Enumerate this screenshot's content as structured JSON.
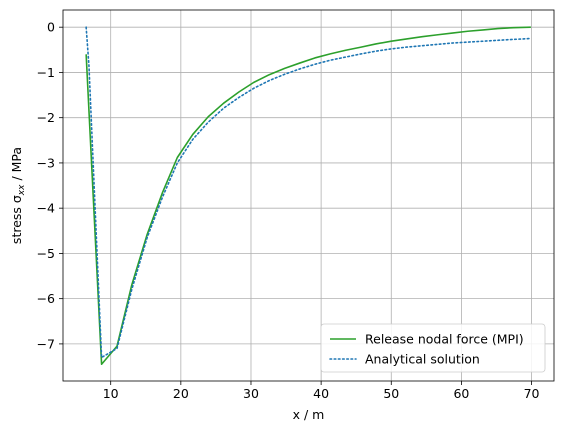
{
  "chart_data": {
    "type": "line",
    "xlabel": "x / m",
    "ylabel_prefix": "stress σ",
    "ylabel_subscript": "xx",
    "ylabel_suffix": " / MPa",
    "xlim": [
      3.2,
      73.2
    ],
    "ylim": [
      -7.82,
      0.38
    ],
    "xticks": [
      10,
      20,
      30,
      40,
      50,
      60,
      70
    ],
    "yticks": [
      0,
      -1,
      -2,
      -3,
      -4,
      -5,
      -6,
      -7
    ],
    "grid": true,
    "legend_position": "lower-right",
    "series": [
      {
        "name": "Release nodal force (MPI)",
        "color": "#2ca02c",
        "style": "solid",
        "x": [
          6.5,
          8.7,
          10.9,
          13.0,
          15.2,
          17.4,
          19.5,
          21.7,
          23.9,
          26.1,
          28.3,
          30.4,
          32.6,
          34.8,
          37.0,
          39.1,
          41.3,
          43.5,
          45.7,
          47.8,
          50.0,
          52.2,
          54.4,
          56.5,
          58.7,
          60.9,
          63.1,
          65.2,
          67.4,
          69.9
        ],
        "y": [
          -0.6,
          -7.45,
          -7.05,
          -5.7,
          -4.58,
          -3.65,
          -2.88,
          -2.37,
          -1.98,
          -1.68,
          -1.43,
          -1.22,
          -1.05,
          -0.91,
          -0.79,
          -0.68,
          -0.59,
          -0.51,
          -0.44,
          -0.37,
          -0.31,
          -0.26,
          -0.21,
          -0.17,
          -0.13,
          -0.09,
          -0.06,
          -0.03,
          -0.01,
          0.0
        ]
      },
      {
        "name": "Analytical solution",
        "color": "#1f77b4",
        "style": "dotted",
        "x": [
          6.5,
          6.9,
          8.7,
          10.9,
          13.0,
          15.2,
          17.4,
          19.5,
          21.7,
          23.9,
          26.1,
          28.3,
          30.4,
          32.6,
          34.8,
          37.0,
          39.1,
          41.3,
          43.5,
          45.7,
          47.8,
          50.0,
          52.2,
          54.4,
          56.5,
          58.7,
          60.9,
          63.1,
          65.2,
          67.4,
          69.9
        ],
        "y": [
          0.0,
          -0.85,
          -7.3,
          -7.1,
          -5.8,
          -4.65,
          -3.75,
          -3.0,
          -2.48,
          -2.1,
          -1.79,
          -1.55,
          -1.35,
          -1.18,
          -1.04,
          -0.92,
          -0.82,
          -0.73,
          -0.66,
          -0.59,
          -0.53,
          -0.48,
          -0.44,
          -0.41,
          -0.38,
          -0.35,
          -0.33,
          -0.31,
          -0.29,
          -0.27,
          -0.25
        ]
      }
    ]
  }
}
